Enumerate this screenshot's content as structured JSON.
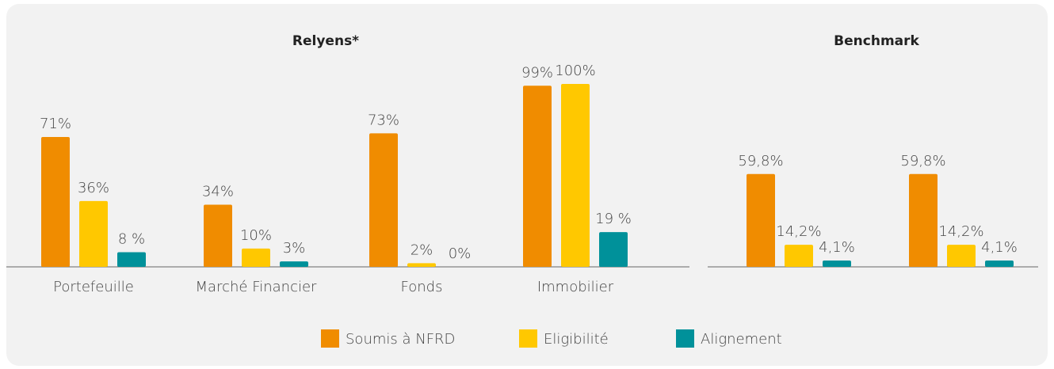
{
  "chart_data": [
    {
      "type": "bar",
      "title": "Relyens*",
      "categories": [
        "Portefeuille",
        "Marché Financier",
        "Fonds",
        "Immobilier"
      ],
      "series": [
        {
          "name": "Soumis à NFRD",
          "color": "#f08c00",
          "values": [
            71,
            34,
            73,
            99
          ],
          "value_labels": [
            "71%",
            "34%",
            "73%",
            "99%"
          ]
        },
        {
          "name": "Eligibilité",
          "color": "#ffc800",
          "values": [
            36,
            10,
            2,
            100
          ],
          "value_labels": [
            "36%",
            "10%",
            "2%",
            "100%"
          ]
        },
        {
          "name": "Alignement",
          "color": "#00919a",
          "values": [
            8,
            3,
            0,
            19
          ],
          "value_labels": [
            "8 %",
            "3%",
            "0%",
            "19 %"
          ]
        }
      ],
      "ylim": [
        0,
        100
      ],
      "legend": "bottom"
    },
    {
      "type": "bar",
      "title": "Benchmark",
      "categories": [
        null,
        null
      ],
      "series": [
        {
          "color": "#f08c00",
          "values": [
            59.8,
            59.8
          ],
          "value_labels": [
            "59,8%",
            "59,8%"
          ]
        },
        {
          "color": "#ffc800",
          "values": [
            14.2,
            14.2
          ],
          "value_labels": [
            "14,2%",
            "14,2%"
          ]
        },
        {
          "color": "#00919a",
          "values": [
            4.1,
            4.1
          ],
          "value_labels": [
            "4,1%",
            "4,1%"
          ]
        }
      ],
      "ylim": [
        0,
        100
      ]
    }
  ]
}
